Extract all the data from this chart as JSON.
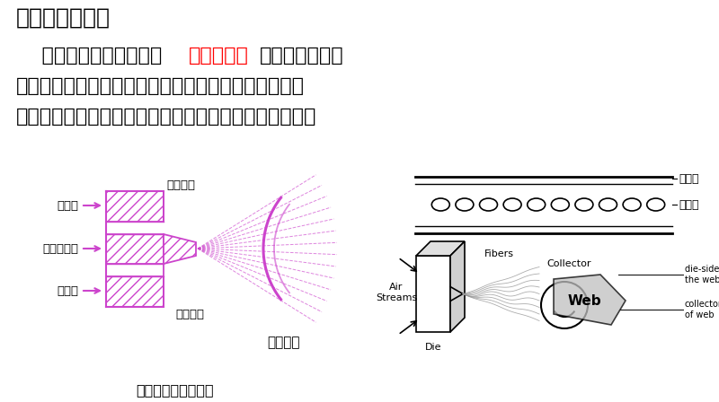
{
  "title": "熔喷的工艺原理",
  "bg_color": "#ffffff",
  "title_fontsize": 18,
  "para_text_line1_pre": "    熔喷非织造工艺是利用",
  "para_highlight": "高速热空气",
  "para_text_line1_post": "对模头喷丝孔挤",
  "para_text_line2": "出的聚合物熔体细流进行牵伸，由此形成超细纤维并凝",
  "para_text_line3": "聚在凝网帘或滚筒上，并依靠自身粘合而成为非织造布。",
  "highlight_color": "#ff0000",
  "text_color": "#000000",
  "caption": "熔喷工艺原理示意图",
  "label_cold_air_top": "冷却气流",
  "label_hot_air_top": "热空气",
  "label_polymer": "聚合物熔体",
  "label_hot_air_bot": "热空气",
  "label_cold_air_bot": "冷却气流",
  "label_receiver": "接收装置",
  "label_air_holes": "气流孔",
  "label_melt_holes": "熔体孔",
  "label_air_streams": "Air\nStreams",
  "label_die": "Die",
  "label_fibers": "Fibers",
  "label_collector": "Collector",
  "label_web": "Web",
  "label_die_side": "die-side of\nthe web",
  "label_collector_side": "collector-side\nof web",
  "purple_color": "#cc44cc",
  "gray_color": "#aaaaaa",
  "para_fontsize": 16
}
